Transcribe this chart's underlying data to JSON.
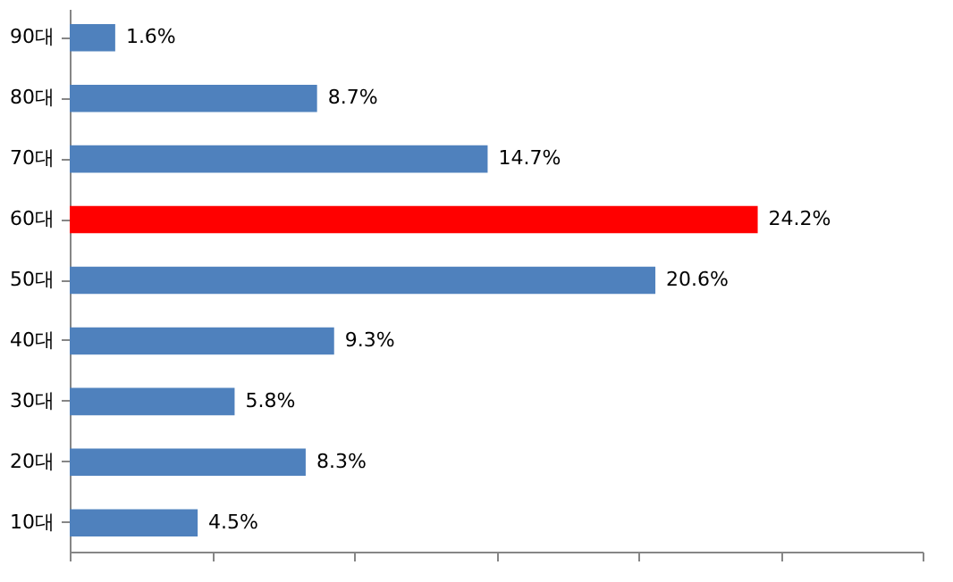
{
  "chart_data": {
    "type": "bar",
    "orientation": "horizontal",
    "categories": [
      "90대",
      "80대",
      "70대",
      "60대",
      "50대",
      "40대",
      "30대",
      "20대",
      "10대"
    ],
    "values": [
      1.6,
      8.7,
      14.7,
      24.2,
      20.6,
      9.3,
      5.8,
      8.3,
      4.5
    ],
    "value_labels": [
      "1.6%",
      "8.7%",
      "14.7%",
      "24.2%",
      "20.6%",
      "9.3%",
      "5.8%",
      "8.3%",
      "4.5%"
    ],
    "colors": [
      "#4f81bd",
      "#4f81bd",
      "#4f81bd",
      "#ff0000",
      "#4f81bd",
      "#4f81bd",
      "#4f81bd",
      "#4f81bd",
      "#4f81bd"
    ],
    "xlim": [
      0,
      30
    ],
    "xticks": [
      {
        "value": 0,
        "label": null
      },
      {
        "value": 5,
        "label": null
      },
      {
        "value": 10,
        "label": null
      },
      {
        "value": 15,
        "label": null
      },
      {
        "value": 20,
        "label": null
      },
      {
        "value": 25,
        "label": null
      },
      {
        "value": 30,
        "label": null
      }
    ],
    "tick_labels": "y",
    "grid": false
  }
}
